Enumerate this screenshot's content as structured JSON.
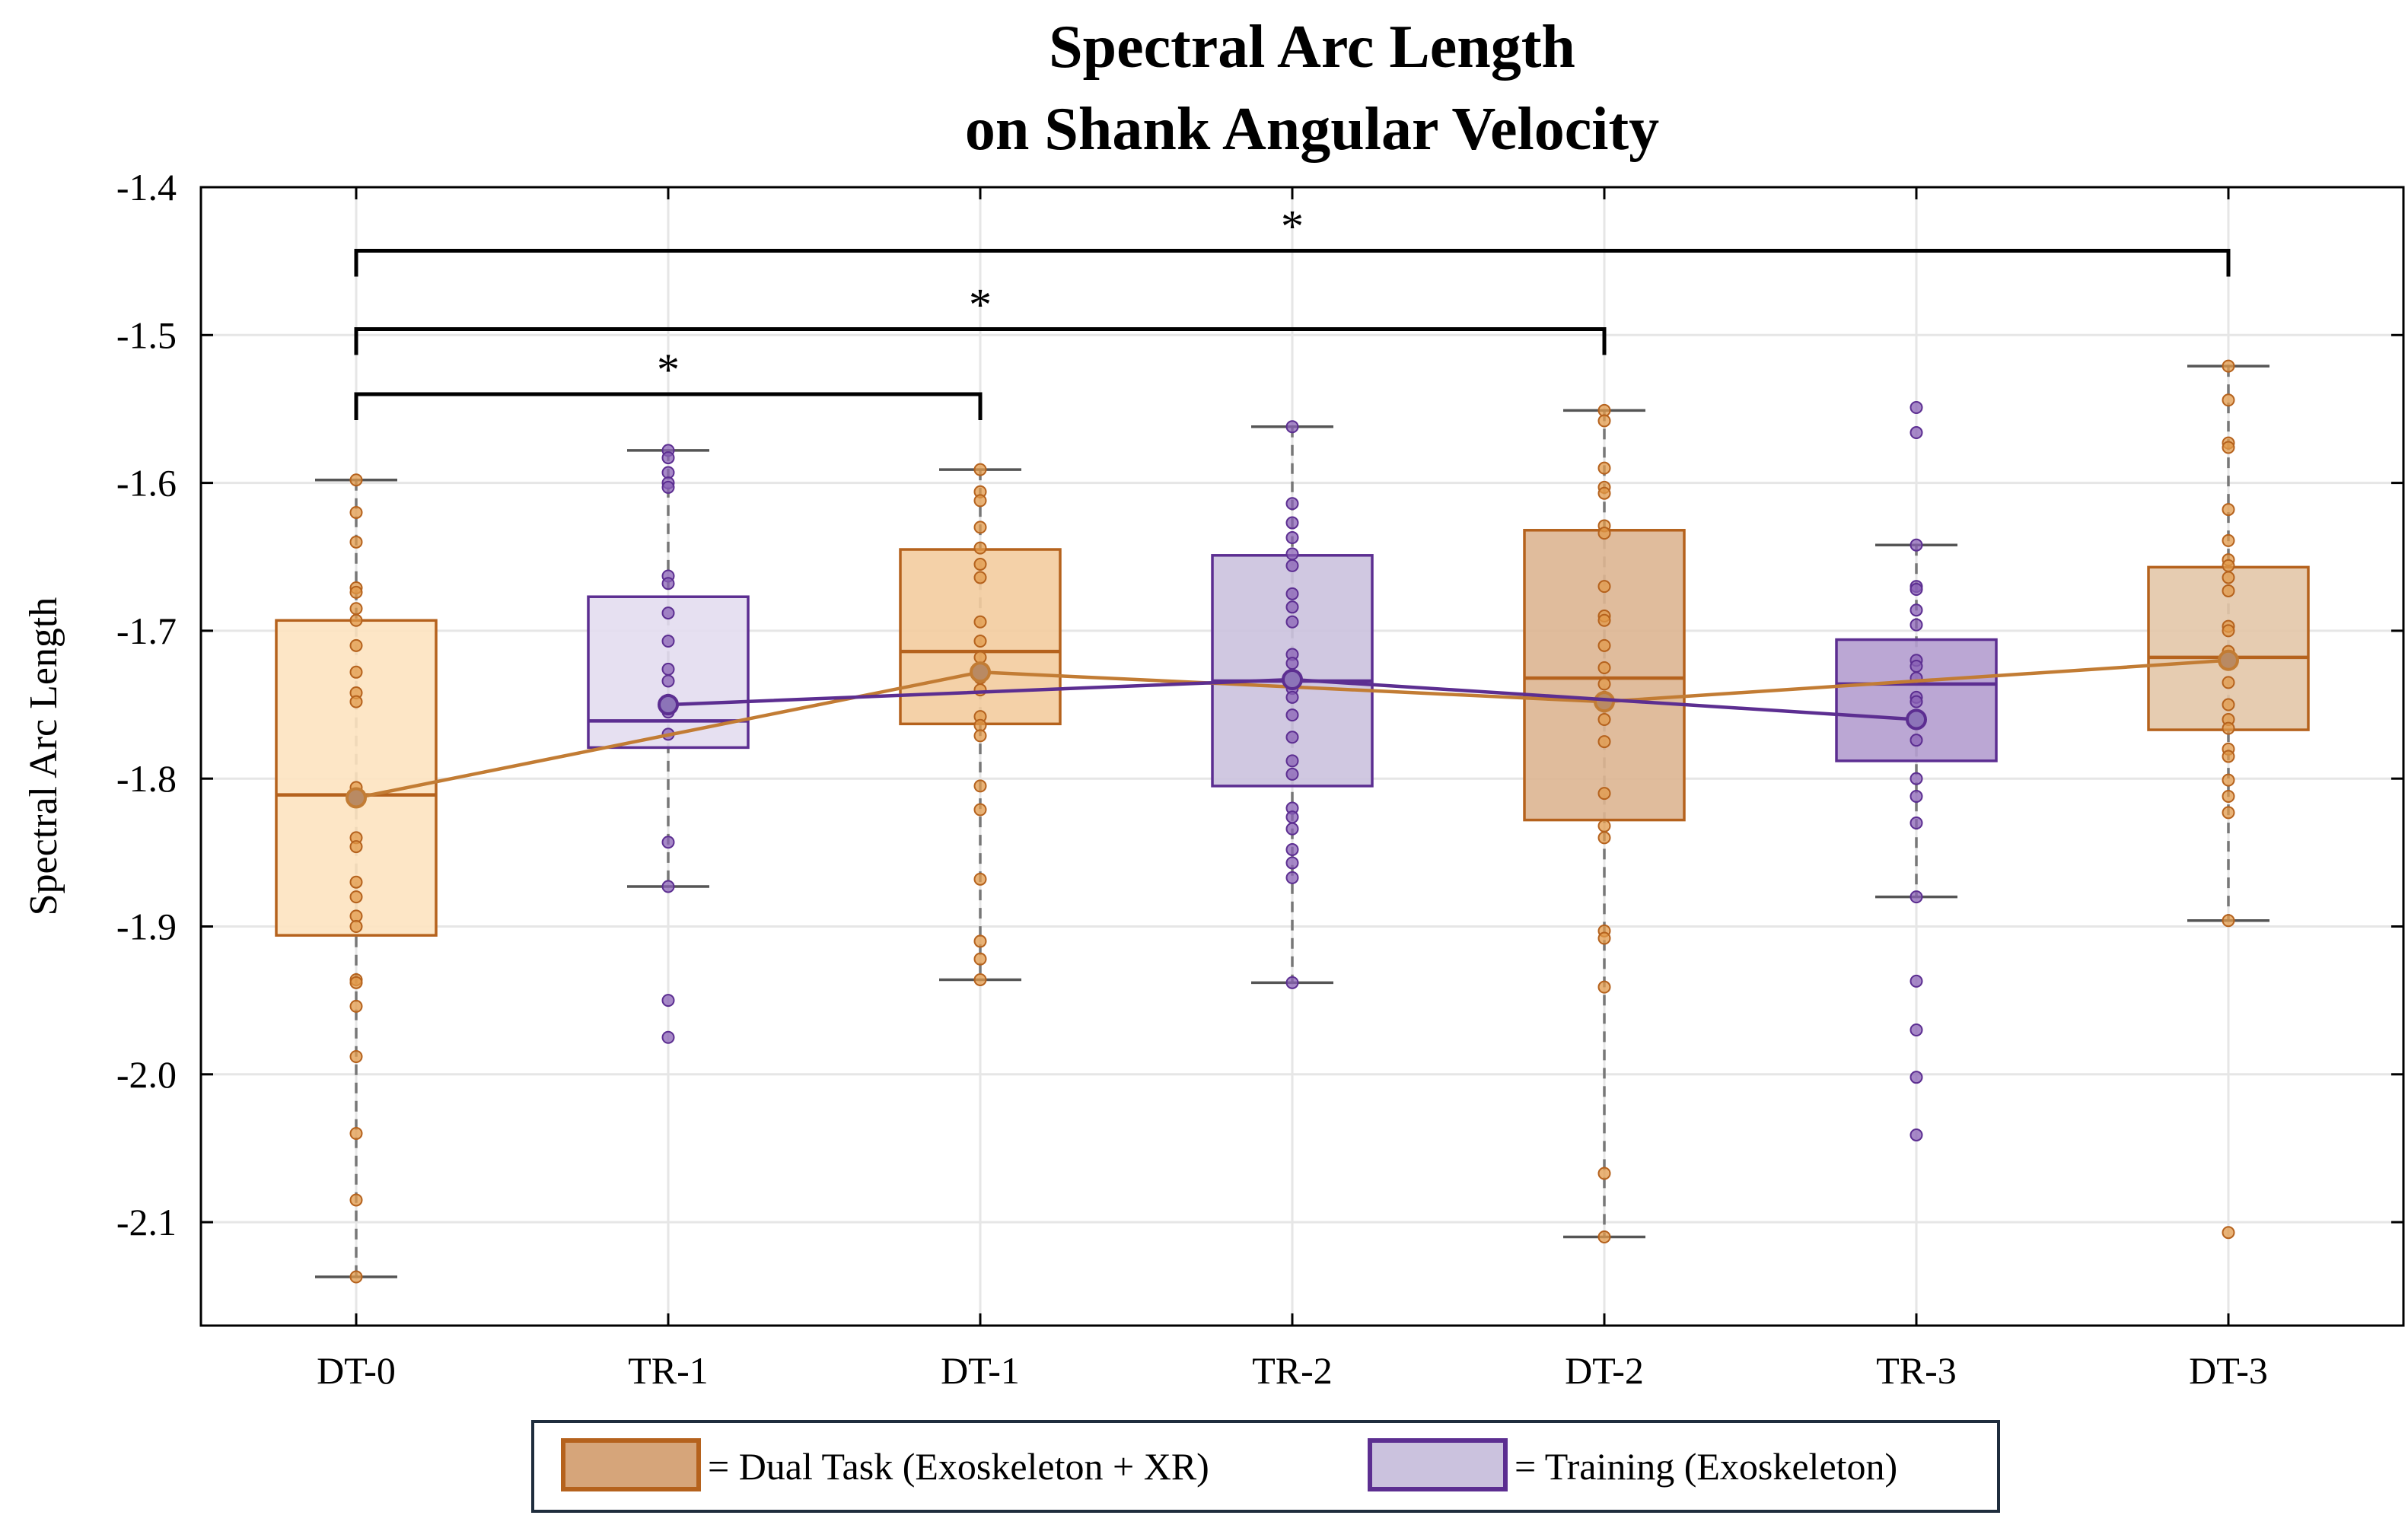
{
  "chart_data": {
    "type": "box",
    "title": [
      "Spectral Arc Length",
      "on Shank Angular Velocity"
    ],
    "ylabel": "Spectral Arc Length",
    "xlabel": "",
    "ylim": [
      -2.17,
      -1.4
    ],
    "yticks": [
      -1.4,
      -1.5,
      -1.6,
      -1.7,
      -1.8,
      -1.9,
      -2.0,
      -2.1
    ],
    "ytick_labels": [
      "-1.4",
      "-1.5",
      "-1.6",
      "-1.7",
      "-1.8",
      "-1.9",
      "-2.0",
      "-2.1"
    ],
    "grid": true,
    "categories": [
      "DT-0",
      "TR-1",
      "DT-1",
      "TR-2",
      "DT-2",
      "TR-3",
      "DT-3"
    ],
    "boxes": [
      {
        "category": "DT-0",
        "group": "dual",
        "q1": -1.906,
        "median": -1.811,
        "q3": -1.693,
        "whisker_low": -2.137,
        "whisker_high": -1.598,
        "mean": -1.813,
        "points": [
          -1.598,
          -1.62,
          -1.64,
          -1.671,
          -1.674,
          -1.685,
          -1.693,
          -1.71,
          -1.728,
          -1.742,
          -1.748,
          -1.806,
          -1.814,
          -1.84,
          -1.846,
          -1.87,
          -1.88,
          -1.893,
          -1.9,
          -1.936,
          -1.938,
          -1.954,
          -1.988,
          -2.04,
          -2.085,
          -2.137
        ]
      },
      {
        "category": "TR-1",
        "group": "training",
        "q1": -1.779,
        "median": -1.761,
        "q3": -1.677,
        "whisker_low": -1.873,
        "whisker_high": -1.578,
        "mean": -1.75,
        "points": [
          -1.578,
          -1.583,
          -1.593,
          -1.6,
          -1.603,
          -1.663,
          -1.668,
          -1.688,
          -1.707,
          -1.726,
          -1.734,
          -1.747,
          -1.755,
          -1.77,
          -1.843,
          -1.873,
          -1.95,
          -1.975
        ]
      },
      {
        "category": "DT-1",
        "group": "dual",
        "q1": -1.763,
        "median": -1.714,
        "q3": -1.645,
        "whisker_low": -1.936,
        "whisker_high": -1.591,
        "mean": -1.728,
        "points": [
          -1.591,
          -1.606,
          -1.612,
          -1.63,
          -1.644,
          -1.655,
          -1.664,
          -1.694,
          -1.707,
          -1.718,
          -1.732,
          -1.74,
          -1.758,
          -1.764,
          -1.771,
          -1.805,
          -1.821,
          -1.868,
          -1.91,
          -1.922,
          -1.936
        ]
      },
      {
        "category": "TR-2",
        "group": "training",
        "q1": -1.805,
        "median": -1.734,
        "q3": -1.649,
        "whisker_low": -1.938,
        "whisker_high": -1.562,
        "mean": -1.733,
        "points": [
          -1.562,
          -1.614,
          -1.627,
          -1.637,
          -1.648,
          -1.656,
          -1.675,
          -1.684,
          -1.694,
          -1.716,
          -1.722,
          -1.739,
          -1.745,
          -1.757,
          -1.772,
          -1.788,
          -1.797,
          -1.82,
          -1.826,
          -1.834,
          -1.848,
          -1.857,
          -1.867,
          -1.938
        ]
      },
      {
        "category": "DT-2",
        "group": "dual",
        "q1": -1.828,
        "median": -1.732,
        "q3": -1.632,
        "whisker_low": -2.11,
        "whisker_high": -1.551,
        "mean": -1.748,
        "points": [
          -1.551,
          -1.558,
          -1.59,
          -1.603,
          -1.607,
          -1.629,
          -1.634,
          -1.67,
          -1.69,
          -1.693,
          -1.71,
          -1.725,
          -1.736,
          -1.745,
          -1.751,
          -1.76,
          -1.775,
          -1.81,
          -1.832,
          -1.84,
          -1.903,
          -1.908,
          -1.941,
          -2.067,
          -2.11
        ]
      },
      {
        "category": "TR-3",
        "group": "training",
        "q1": -1.788,
        "median": -1.736,
        "q3": -1.706,
        "whisker_low": -1.88,
        "whisker_high": -1.642,
        "mean": -1.76,
        "points": [
          -1.549,
          -1.566,
          -1.642,
          -1.67,
          -1.672,
          -1.686,
          -1.696,
          -1.72,
          -1.724,
          -1.732,
          -1.745,
          -1.748,
          -1.76,
          -1.774,
          -1.8,
          -1.812,
          -1.83,
          -1.88,
          -1.937,
          -1.97,
          -2.002,
          -2.041
        ]
      },
      {
        "category": "DT-3",
        "group": "dual",
        "q1": -1.767,
        "median": -1.718,
        "q3": -1.657,
        "whisker_low": -1.896,
        "whisker_high": -1.521,
        "mean": -1.72,
        "points": [
          -1.521,
          -1.544,
          -1.573,
          -1.576,
          -1.618,
          -1.639,
          -1.652,
          -1.656,
          -1.664,
          -1.673,
          -1.697,
          -1.7,
          -1.714,
          -1.722,
          -1.735,
          -1.75,
          -1.76,
          -1.766,
          -1.78,
          -1.785,
          -1.801,
          -1.812,
          -1.823,
          -1.896,
          -2.107
        ]
      }
    ],
    "dual_box_fills": [
      "#fde3c0",
      "#f3cc9e",
      "#ddb591",
      "#e3c6a8"
    ],
    "training_box_fills": [
      "#e3ddef",
      "#cbc2de",
      "#b49dcf"
    ],
    "series": [
      {
        "name": "Dual Task (Exoskeleton + XR)",
        "categories": [
          "DT-0",
          "DT-1",
          "DT-2",
          "DT-3"
        ],
        "values": [
          -1.813,
          -1.728,
          -1.748,
          -1.72
        ],
        "color": "#c27c34"
      },
      {
        "name": "Training (Exoskeleton)",
        "categories": [
          "TR-1",
          "TR-2",
          "TR-3"
        ],
        "values": [
          -1.75,
          -1.733,
          -1.76
        ],
        "color": "#5c2e91"
      }
    ],
    "significance": [
      {
        "from": "DT-0",
        "to": "DT-1",
        "label": "*",
        "level": -1.54
      },
      {
        "from": "DT-0",
        "to": "DT-2",
        "label": "*",
        "level": -1.496
      },
      {
        "from": "DT-0",
        "to": "DT-3",
        "label": "*",
        "level": -1.443
      }
    ],
    "legend": {
      "placement": "bottom",
      "items": [
        {
          "label": "= Dual Task (Exoskeleton + XR)",
          "fill": "#d6a57a",
          "stroke": "#b5621d"
        },
        {
          "label": "= Training (Exoskeleton)",
          "fill": "#cbc2de",
          "stroke": "#5c2e91"
        }
      ]
    },
    "colors": {
      "dual_stroke": "#b5621d",
      "dual_point": "#e29a4a",
      "dual_line": "#c27c34",
      "training_stroke": "#5c2e91",
      "training_point": "#8a62b5",
      "training_line": "#5c2e91",
      "grid": "#e6e6e6",
      "whisker": "#777777"
    }
  }
}
